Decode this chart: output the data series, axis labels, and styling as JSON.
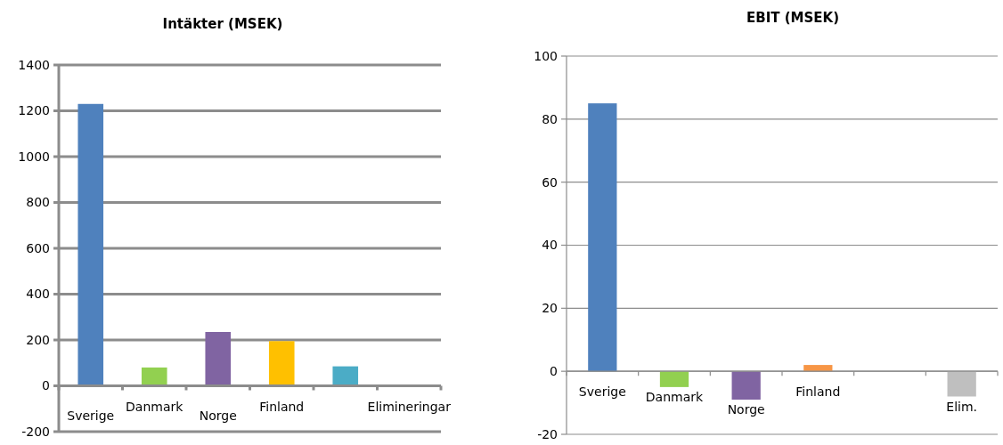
{
  "chart_data": [
    {
      "type": "bar",
      "title": "Intäkter (MSEK)",
      "categories": [
        "Sverige",
        "Danmark",
        "Norge",
        "Finland",
        null,
        "Elimineringar"
      ],
      "values": [
        1230,
        80,
        235,
        195,
        85,
        -5
      ],
      "colors": [
        "#4f81bd",
        "#92d050",
        "#8064a2",
        "#ffc000",
        "#4bacc6",
        "#a6a6a6"
      ],
      "ylim": [
        -200,
        1400
      ],
      "yticks": [
        -200,
        0,
        200,
        400,
        600,
        800,
        1000,
        1200,
        1400
      ],
      "grid": "y"
    },
    {
      "type": "bar",
      "title": "EBIT (MSEK)",
      "categories": [
        "Sverige",
        "Danmark",
        "Norge",
        "Finland",
        null,
        "Elim."
      ],
      "values": [
        85,
        -5,
        -9,
        2,
        0,
        -8
      ],
      "colors": [
        "#4f81bd",
        "#92d050",
        "#8064a2",
        "#f79646",
        "#4bacc6",
        "#bfbfbf"
      ],
      "ylim": [
        -20,
        100
      ],
      "yticks": [
        -20,
        0,
        20,
        40,
        60,
        80,
        100
      ],
      "grid": "y"
    }
  ]
}
